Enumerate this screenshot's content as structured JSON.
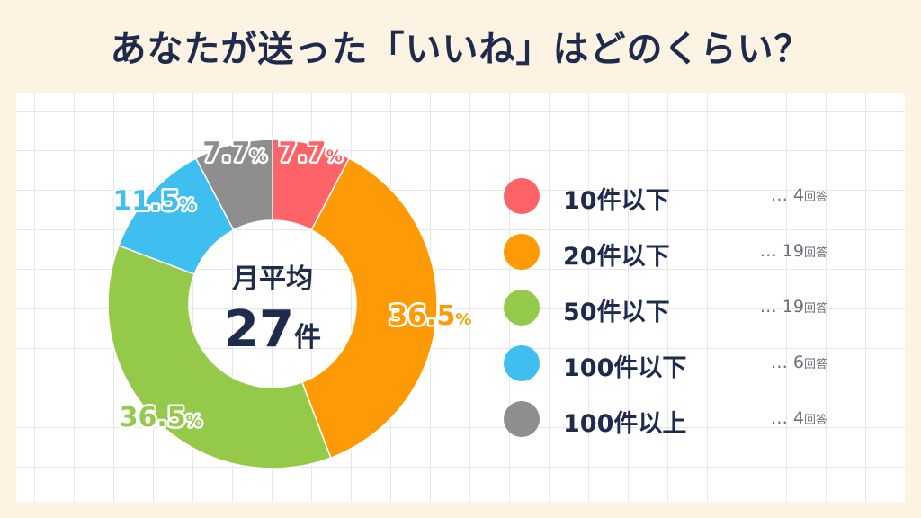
{
  "title": "あなたが送った「いいね」はどのくらい？",
  "center": {
    "label": "月平均",
    "value": "27",
    "unit": "件"
  },
  "chart_data": {
    "type": "pie",
    "title": "あなたが送った「いいね」はどのくらい？",
    "categories": [
      "10件以下",
      "20件以下",
      "50件以下",
      "100件以下",
      "100件以上"
    ],
    "values": [
      7.7,
      36.5,
      36.5,
      11.5,
      7.7
    ],
    "counts": [
      4,
      19,
      19,
      6,
      4
    ],
    "labels": [
      "7.7",
      "36.5",
      "36.5",
      "11.5",
      "7.7"
    ],
    "percent_sign": "%",
    "colors": [
      "#fe6367",
      "#fd9a05",
      "#94c94a",
      "#3fbff0",
      "#8e8e8e"
    ],
    "legend_placement": "right"
  },
  "legend": [
    {
      "label": "10件以下",
      "prefix": "…",
      "count": "4",
      "unit": "回答",
      "color": "#fe6367"
    },
    {
      "label": "20件以下",
      "prefix": "…",
      "count": "19",
      "unit": "回答",
      "color": "#fd9a05"
    },
    {
      "label": "50件以下",
      "prefix": "…",
      "count": "19",
      "unit": "回答",
      "color": "#94c94a"
    },
    {
      "label": "100件以下",
      "prefix": "…",
      "count": "6",
      "unit": "回答",
      "color": "#3fbff0"
    },
    {
      "label": "100件以上",
      "prefix": "…",
      "count": "4",
      "unit": "回答",
      "color": "#8e8e8e"
    }
  ]
}
